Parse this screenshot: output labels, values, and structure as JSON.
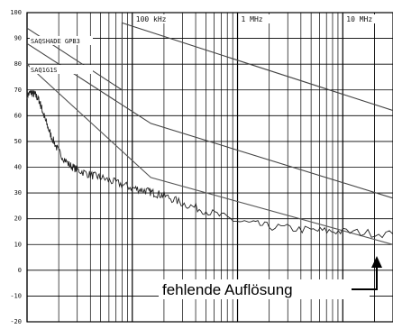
{
  "chart_data": {
    "type": "line",
    "x_scale": "log",
    "x_range_hz": [
      10000,
      30000000
    ],
    "ylim": [
      -20,
      100
    ],
    "y_ticks": [
      100,
      90,
      80,
      70,
      60,
      50,
      40,
      30,
      20,
      10,
      0,
      -10,
      -20
    ],
    "x_tick_labels": [
      {
        "label": "100 kHz",
        "value": 100000
      },
      {
        "label": "1 MHz",
        "value": 1000000
      },
      {
        "label": "10 MHz",
        "value": 10000000
      }
    ],
    "grid": true,
    "limit_labels": [
      "SAQSHADE GPB3",
      "SAQ1G1S"
    ],
    "series": [
      {
        "name": "SAQSHADE GPB3",
        "color": "#444444",
        "points": [
          [
            10000,
            94
          ],
          [
            80000,
            70
          ],
          [
            80000,
            96
          ],
          [
            30000000,
            62
          ]
        ]
      },
      {
        "name": "SAQ1G1S",
        "color": "#444444",
        "points": [
          [
            10000,
            88
          ],
          [
            150000,
            57
          ],
          [
            30000000,
            28
          ]
        ]
      },
      {
        "color": "#555555",
        "points": [
          [
            10000,
            80
          ],
          [
            150000,
            36
          ],
          [
            30000000,
            10
          ]
        ]
      },
      {
        "color": "#222222",
        "noisy": true,
        "points": [
          [
            10000,
            68
          ],
          [
            11000,
            69
          ],
          [
            12000,
            68
          ],
          [
            13000,
            66
          ],
          [
            14000,
            62
          ],
          [
            15000,
            58
          ],
          [
            17000,
            52
          ],
          [
            20000,
            46
          ],
          [
            25000,
            41
          ],
          [
            30000,
            39
          ],
          [
            40000,
            37
          ],
          [
            50000,
            36
          ],
          [
            70000,
            34
          ],
          [
            100000,
            32
          ],
          [
            130000,
            31
          ],
          [
            160000,
            30
          ],
          [
            200000,
            29
          ],
          [
            300000,
            26
          ],
          [
            500000,
            23
          ],
          [
            1000000,
            19
          ],
          [
            2000000,
            17
          ],
          [
            5000000,
            15.5
          ],
          [
            10000000,
            15
          ],
          [
            30000000,
            14
          ]
        ]
      }
    ],
    "annotation": "fehlende Auflösung"
  }
}
